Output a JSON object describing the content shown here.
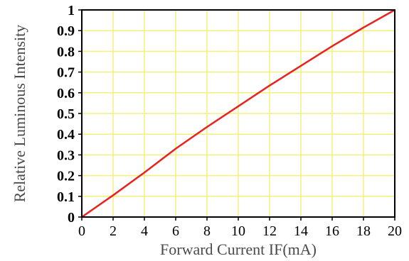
{
  "chart_data": {
    "type": "line",
    "title": "",
    "xlabel": "Forward Current IF(mA)",
    "ylabel": "Relative Luminous Intensity",
    "xlim": [
      0,
      20
    ],
    "ylim": [
      0,
      1
    ],
    "x_ticks": [
      "0",
      "2",
      "4",
      "6",
      "8",
      "10",
      "12",
      "14",
      "16",
      "18",
      "20"
    ],
    "y_ticks": [
      "0",
      "0.1",
      "0.2",
      "0.3",
      "0.4",
      "0.5",
      "0.6",
      "0.7",
      "0.8",
      "0.9",
      "1"
    ],
    "grid": true,
    "colors": {
      "grid": "#f5f07a",
      "line": "#e8231e",
      "frame": "#000000"
    },
    "series": [
      {
        "x": [
          0,
          2,
          4,
          6,
          8,
          10,
          12,
          14,
          16,
          18,
          20
        ],
        "y": [
          0,
          0.105,
          0.215,
          0.33,
          0.435,
          0.535,
          0.635,
          0.73,
          0.825,
          0.915,
          1.0
        ]
      }
    ]
  }
}
